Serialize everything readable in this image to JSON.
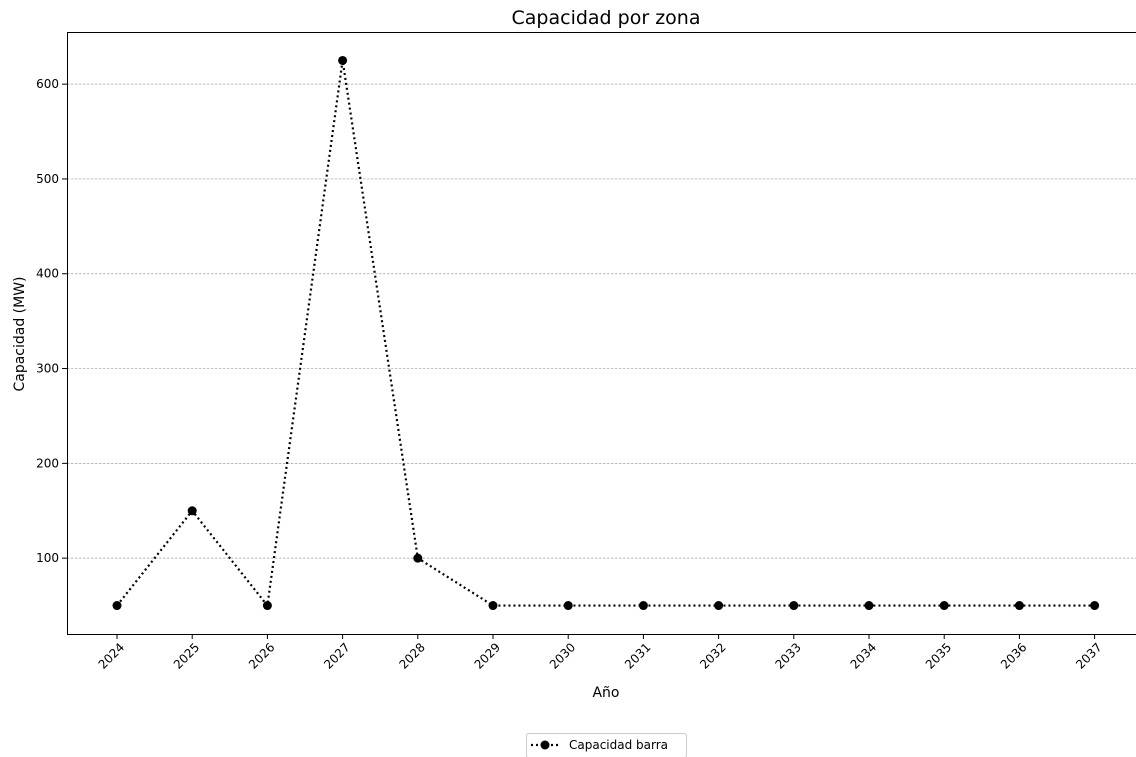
{
  "chart_data": {
    "type": "line",
    "title": "Capacidad por zona",
    "xlabel": "Año",
    "ylabel": "Capacidad (MW)",
    "x": [
      "2024",
      "2025",
      "2026",
      "2027",
      "2028",
      "2029",
      "2030",
      "2031",
      "2032",
      "2033",
      "2034",
      "2035",
      "2036",
      "2037"
    ],
    "ylim": [
      20,
      655
    ],
    "yticks": [
      100,
      200,
      300,
      400,
      500,
      600
    ],
    "grid": "horizontal",
    "legend_position": "bottom-center",
    "series": [
      {
        "name": "Capacidad barra",
        "color": "#000000",
        "line_style": "dotted",
        "marker": "circle",
        "values": [
          50,
          150,
          50,
          625,
          100,
          50,
          50,
          50,
          50,
          50,
          50,
          50,
          50,
          50
        ]
      }
    ]
  }
}
